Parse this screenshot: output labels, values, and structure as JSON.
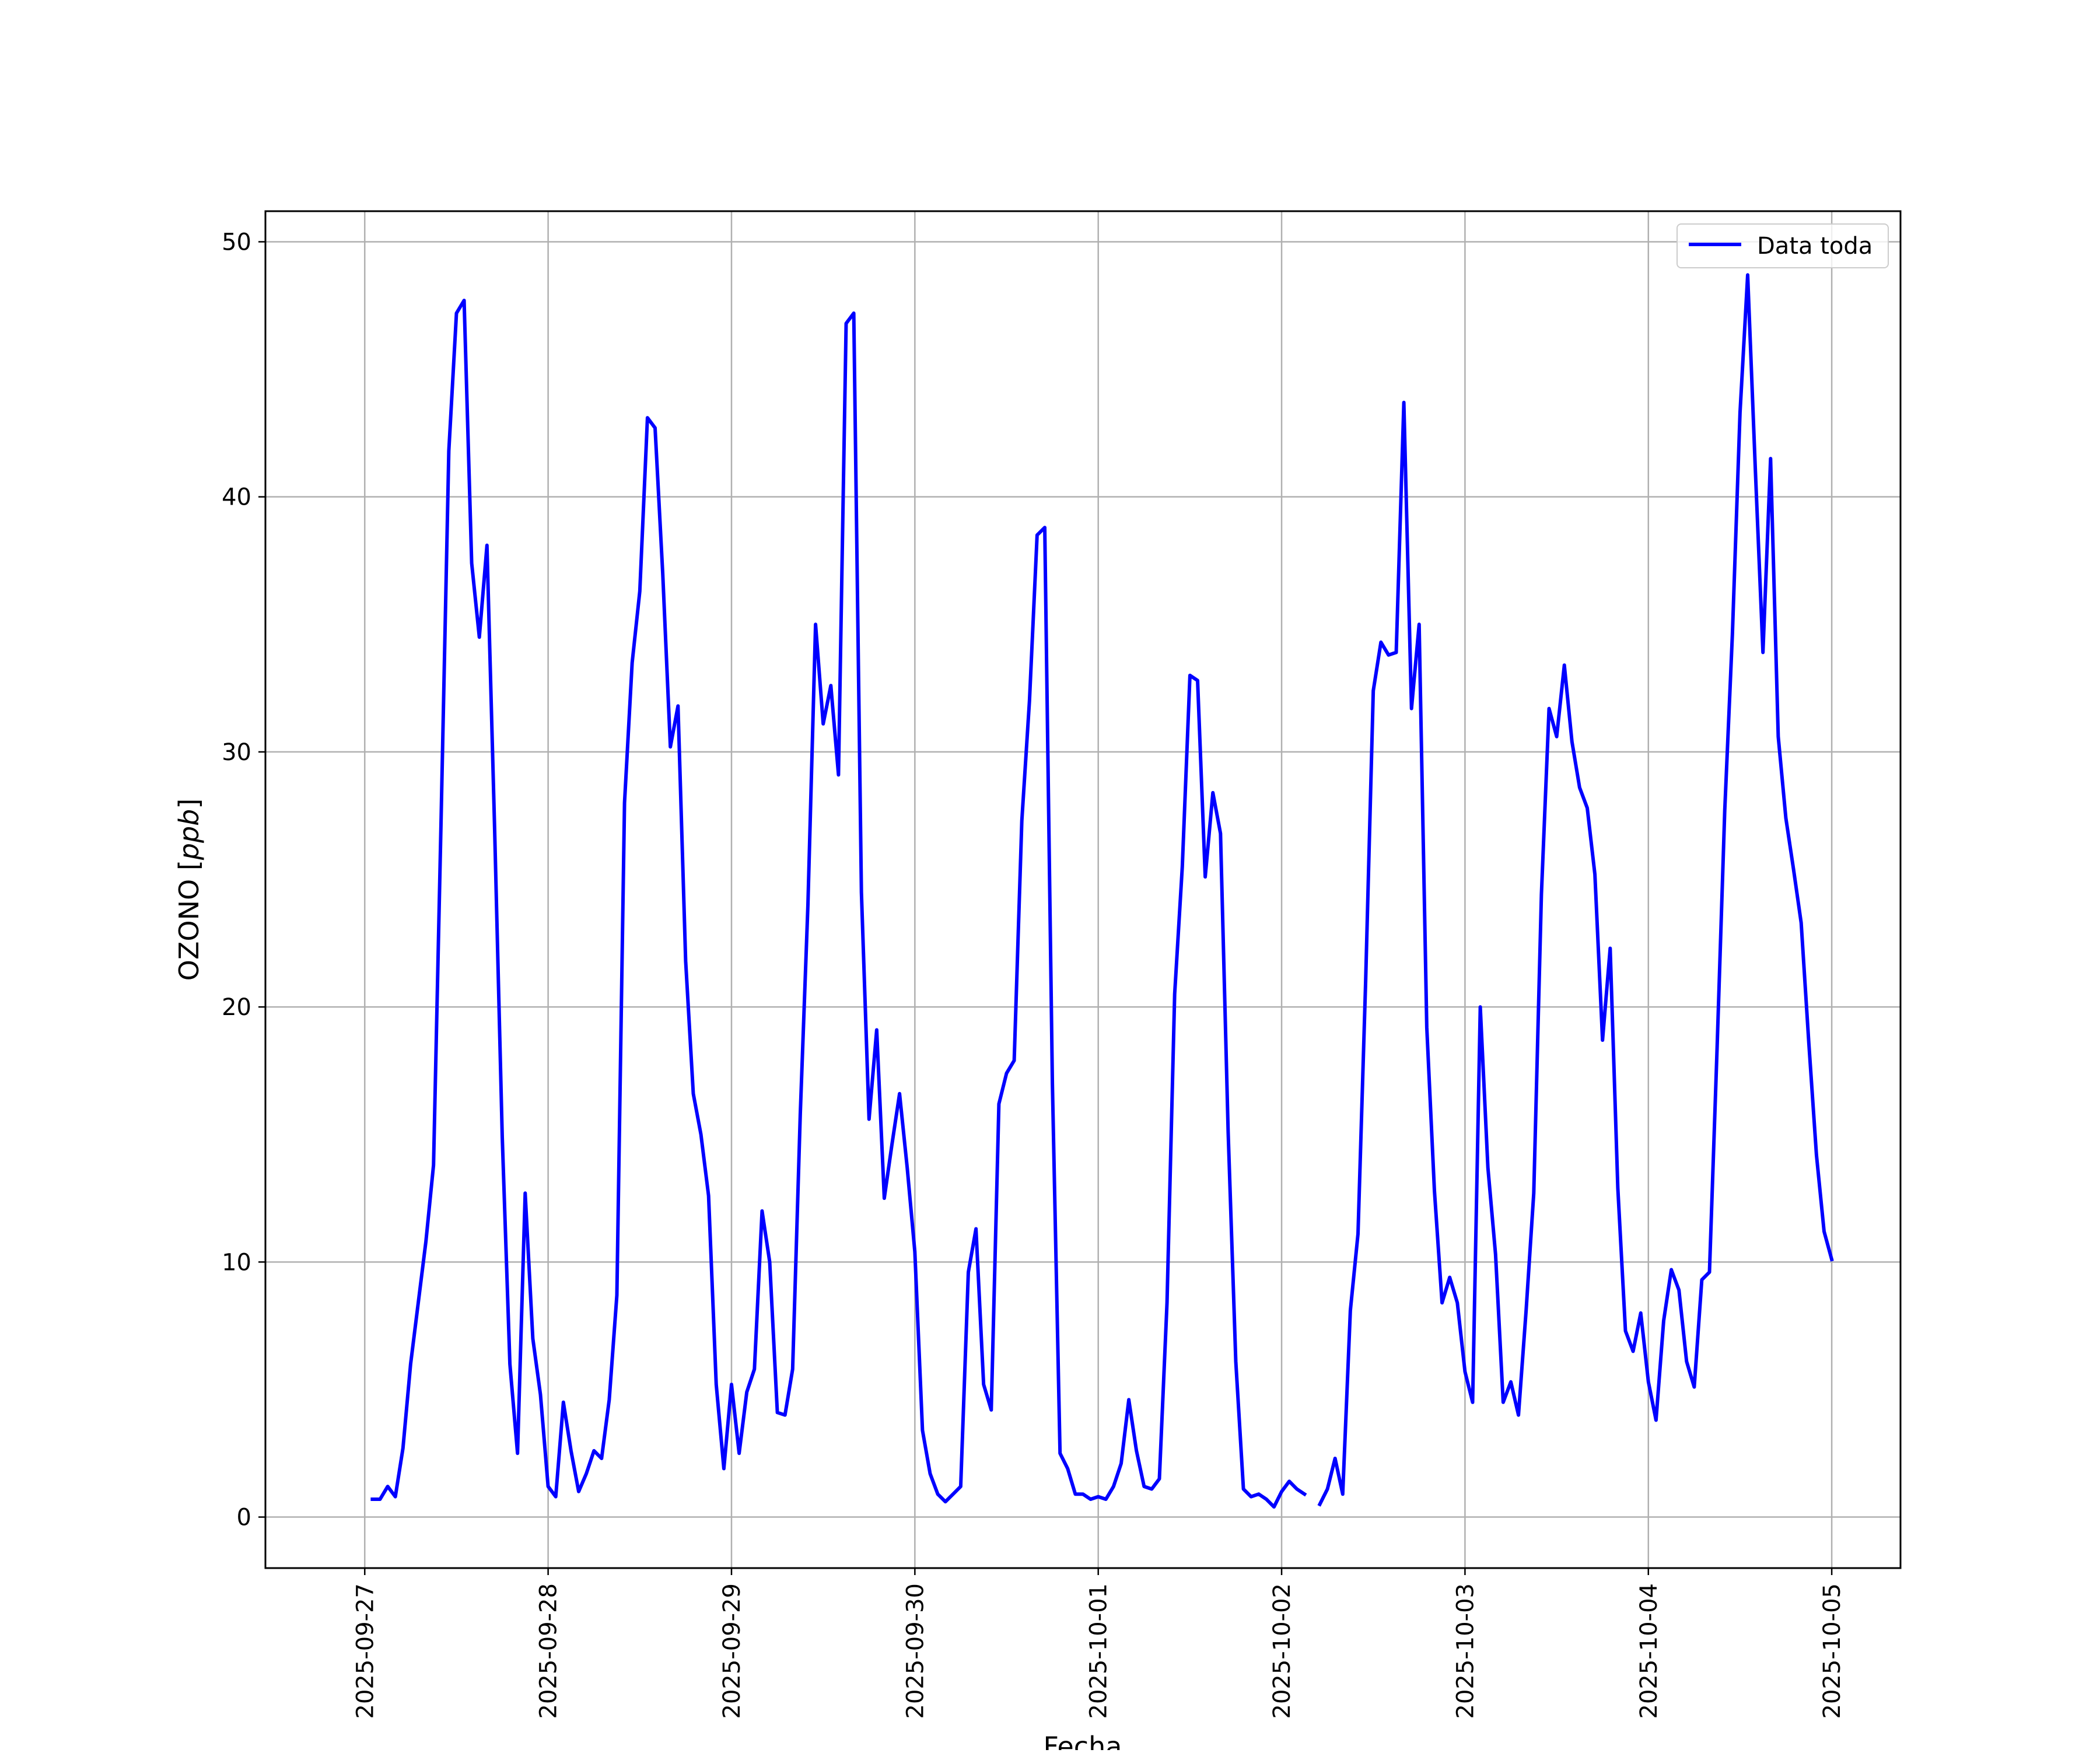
{
  "chart_data": {
    "type": "line",
    "title": "",
    "xlabel": "Fecha",
    "ylabel": "OZONO [ppb]",
    "ylabel_prefix": "OZONO [",
    "ylabel_unit": "ppb",
    "ylabel_suffix": "]",
    "ylim": [
      -2,
      51.2
    ],
    "xlim": [
      "2025-09-26 11:00",
      "2025-10-05 09:00"
    ],
    "grid": true,
    "legend_position": "top-right",
    "x_ticks": [
      "2025-09-27",
      "2025-09-28",
      "2025-09-29",
      "2025-09-30",
      "2025-10-01",
      "2025-10-02",
      "2025-10-03",
      "2025-10-04",
      "2025-10-05"
    ],
    "y_ticks": [
      0,
      10,
      20,
      30,
      40,
      50
    ],
    "series": [
      {
        "name": "Data toda",
        "color": "#0000ff",
        "start": "2025-09-27 01:00",
        "step_hours": 1,
        "values": [
          0.7,
          0.7,
          1.2,
          0.8,
          2.7,
          6.0,
          8.4,
          10.8,
          13.8,
          27.5,
          41.8,
          47.2,
          47.7,
          37.4,
          34.5,
          38.1,
          27.0,
          14.9,
          6.0,
          2.5,
          12.7,
          7.0,
          4.8,
          1.2,
          0.8,
          4.5,
          2.6,
          1.0,
          1.7,
          2.6,
          2.3,
          4.6,
          8.7,
          28.0,
          33.5,
          36.3,
          43.1,
          42.7,
          37.0,
          30.2,
          31.8,
          21.8,
          16.6,
          15.0,
          12.6,
          5.2,
          1.9,
          5.2,
          2.5,
          4.9,
          5.8,
          12.0,
          10.0,
          4.1,
          4.0,
          5.8,
          15.8,
          24.0,
          35.0,
          31.1,
          32.6,
          29.1,
          46.8,
          47.2,
          24.5,
          15.6,
          19.1,
          12.5,
          14.6,
          16.6,
          13.7,
          10.4,
          3.4,
          1.7,
          0.9,
          0.6,
          0.9,
          1.2,
          9.6,
          11.3,
          5.2,
          4.2,
          16.2,
          17.4,
          17.9,
          27.3,
          32.0,
          38.5,
          38.8,
          17.0,
          2.5,
          1.9,
          0.9,
          0.9,
          0.7,
          0.8,
          0.7,
          1.2,
          2.1,
          4.6,
          2.6,
          1.2,
          1.1,
          1.5,
          8.4,
          20.5,
          25.5,
          33.0,
          32.8,
          25.1,
          28.4,
          26.8,
          15.1,
          6.1,
          1.1,
          0.8,
          0.9,
          0.7,
          0.4,
          1.0,
          1.4,
          1.1,
          0.9,
          null,
          0.5,
          1.1,
          2.3,
          0.9,
          8.1,
          11.1,
          21.0,
          32.4,
          34.3,
          33.8,
          33.9,
          43.7,
          31.7,
          35.0,
          19.2,
          12.8,
          8.4,
          9.4,
          8.4,
          5.7,
          4.5,
          20.0,
          13.7,
          10.3,
          4.5,
          5.3,
          4.0,
          8.1,
          12.7,
          24.4,
          31.7,
          30.6,
          33.4,
          30.4,
          28.6,
          27.8,
          25.2,
          18.7,
          22.3,
          12.9,
          7.3,
          6.5,
          8.0,
          5.3,
          3.8,
          7.7,
          9.7,
          8.9,
          6.1,
          5.1,
          9.3,
          9.6,
          18.4,
          27.7,
          34.6,
          43.3,
          48.7,
          41.1,
          33.9,
          41.5,
          30.6,
          27.4,
          25.4,
          23.3,
          18.6,
          14.2,
          11.2,
          10.1
        ]
      }
    ]
  }
}
